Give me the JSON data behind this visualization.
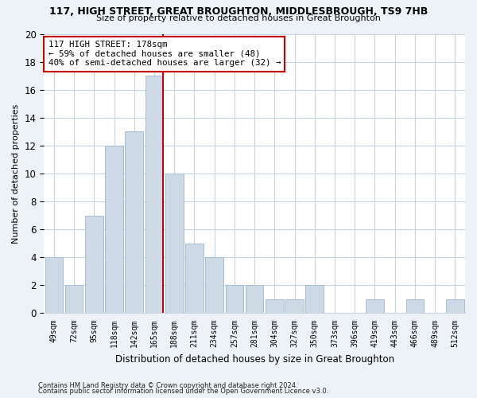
{
  "title": "117, HIGH STREET, GREAT BROUGHTON, MIDDLESBROUGH, TS9 7HB",
  "subtitle": "Size of property relative to detached houses in Great Broughton",
  "xlabel": "Distribution of detached houses by size in Great Broughton",
  "ylabel": "Number of detached properties",
  "bar_color": "#cdd9e5",
  "bar_edge_color": "#a8bece",
  "categories": [
    "49sqm",
    "72sqm",
    "95sqm",
    "118sqm",
    "142sqm",
    "165sqm",
    "188sqm",
    "211sqm",
    "234sqm",
    "257sqm",
    "281sqm",
    "304sqm",
    "327sqm",
    "350sqm",
    "373sqm",
    "396sqm",
    "419sqm",
    "443sqm",
    "466sqm",
    "489sqm",
    "512sqm"
  ],
  "values": [
    4,
    2,
    7,
    12,
    13,
    17,
    10,
    5,
    4,
    2,
    2,
    1,
    1,
    2,
    0,
    0,
    1,
    0,
    1,
    0,
    1
  ],
  "ylim": [
    0,
    20
  ],
  "yticks": [
    0,
    2,
    4,
    6,
    8,
    10,
    12,
    14,
    16,
    18,
    20
  ],
  "property_line_x": 5.42,
  "property_line_color": "#cc0000",
  "annotation_text": "117 HIGH STREET: 178sqm\n← 59% of detached houses are smaller (48)\n40% of semi-detached houses are larger (32) →",
  "annotation_box_color": "#ffffff",
  "annotation_box_edge_color": "#cc0000",
  "footnote1": "Contains HM Land Registry data © Crown copyright and database right 2024.",
  "footnote2": "Contains public sector information licensed under the Open Government Licence v3.0.",
  "background_color": "#edf2f7",
  "plot_background_color": "#ffffff",
  "grid_color": "#c8d4e0"
}
